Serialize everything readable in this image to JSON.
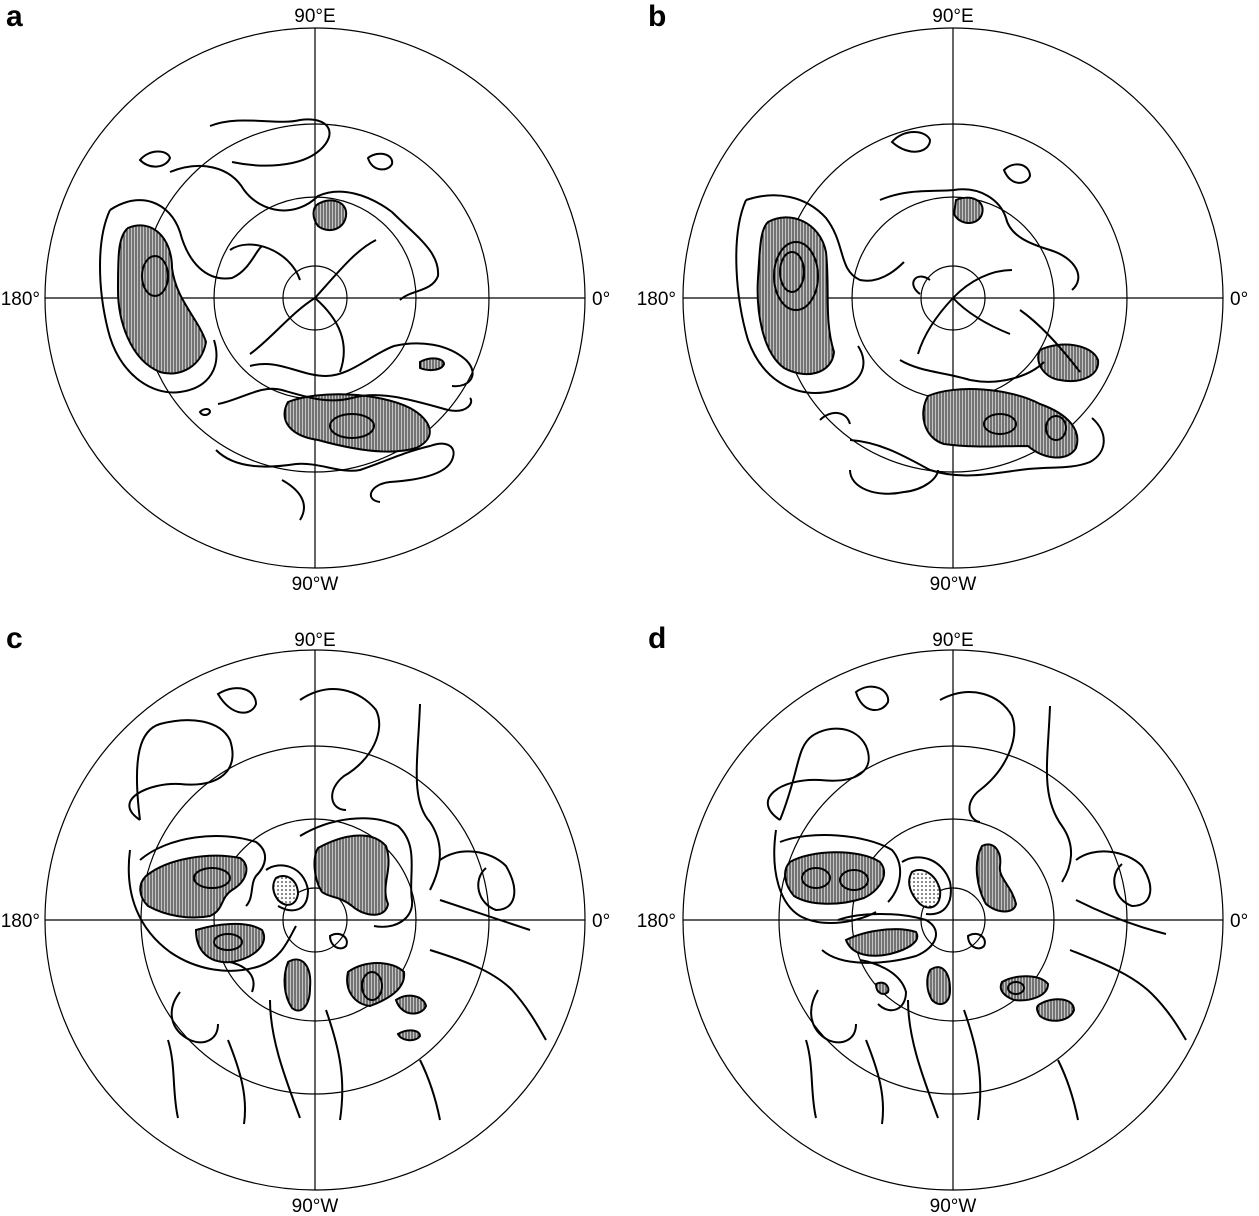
{
  "panels": [
    {
      "letter": "a",
      "labels": {
        "top": "90°E",
        "bottom": "90°W",
        "left": "180°",
        "right": "0°"
      }
    },
    {
      "letter": "b",
      "labels": {
        "top": "90°E",
        "bottom": "90°W",
        "left": "180°",
        "right": "0°"
      }
    },
    {
      "letter": "c",
      "labels": {
        "top": "90°E",
        "bottom": "90°W",
        "left": "180°",
        "right": "0°"
      }
    },
    {
      "letter": "d",
      "labels": {
        "top": "90°E",
        "bottom": "90°W",
        "left": "180°",
        "right": "0°"
      }
    }
  ],
  "colors": {
    "line": "#000000",
    "shade": "#bdbdbd",
    "background": "#ffffff"
  }
}
